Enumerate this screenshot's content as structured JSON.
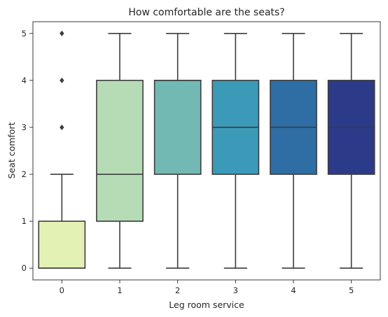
{
  "chart_data": {
    "type": "box",
    "title": "How comfortable are the seats?",
    "xlabel": "Leg room service",
    "ylabel": "Seat comfort",
    "categories": [
      "0",
      "1",
      "2",
      "3",
      "4",
      "5"
    ],
    "yticks": [
      "0",
      "1",
      "2",
      "3",
      "4",
      "5"
    ],
    "ylim": [
      -0.25,
      5.25
    ],
    "grid": false,
    "boxes": [
      {
        "category": "0",
        "whisker_low": 0,
        "q1": 0,
        "median": 0,
        "q3": 1,
        "whisker_high": 2,
        "outliers": [
          3,
          4,
          5
        ],
        "color": "#e3f1b4"
      },
      {
        "category": "1",
        "whisker_low": 0,
        "q1": 1,
        "median": 2,
        "q3": 4,
        "whisker_high": 5,
        "outliers": [],
        "color": "#b6dcb5"
      },
      {
        "category": "2",
        "whisker_low": 0,
        "q1": 2,
        "median": 4,
        "q3": 4,
        "whisker_high": 5,
        "outliers": [],
        "color": "#72b9b3"
      },
      {
        "category": "3",
        "whisker_low": 0,
        "q1": 2,
        "median": 3,
        "q3": 4,
        "whisker_high": 5,
        "outliers": [],
        "color": "#3b9ab8"
      },
      {
        "category": "4",
        "whisker_low": 0,
        "q1": 2,
        "median": 3,
        "q3": 4,
        "whisker_high": 5,
        "outliers": [],
        "color": "#2e6ea5"
      },
      {
        "category": "5",
        "whisker_low": 0,
        "q1": 2,
        "median": 3,
        "q3": 4,
        "whisker_high": 5,
        "outliers": [],
        "color": "#2c3a8a"
      }
    ]
  }
}
